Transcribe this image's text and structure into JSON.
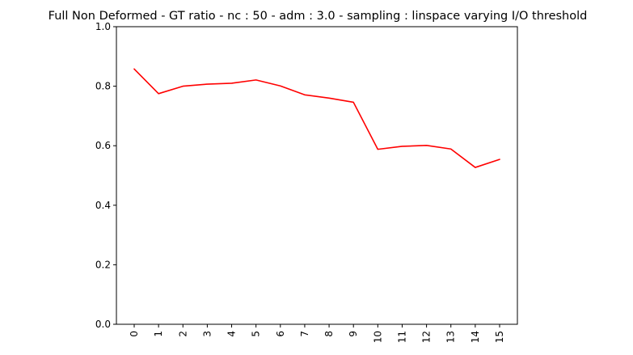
{
  "chart_data": {
    "type": "line",
    "title": "Full Non Deformed - GT ratio - nc : 50 - adm : 3.0 - sampling : linspace varying I/O threshold",
    "xlabel": "",
    "ylabel": "",
    "x": [
      "0",
      "1",
      "2",
      "3",
      "4",
      "5",
      "6",
      "7",
      "8",
      "9",
      "10",
      "11",
      "12",
      "13",
      "14",
      "15"
    ],
    "series": [
      {
        "color": "#ff0000",
        "values": [
          0.858,
          0.775,
          0.8,
          0.807,
          0.81,
          0.821,
          0.801,
          0.771,
          0.76,
          0.746,
          0.588,
          0.598,
          0.601,
          0.589,
          0.527,
          0.554
        ]
      }
    ],
    "ylim": [
      0,
      1.0
    ],
    "yticks": [
      "0.0",
      "0.2",
      "0.4",
      "0.6",
      "0.8",
      "1.0"
    ],
    "grid": false,
    "legend": "none"
  }
}
